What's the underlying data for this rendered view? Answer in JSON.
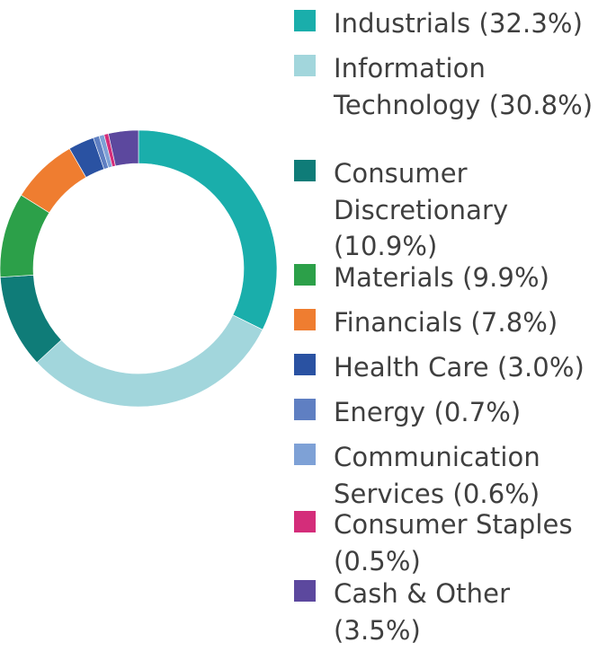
{
  "chart_data": {
    "type": "pie",
    "style": "donut",
    "legend_position": "right",
    "slices": [
      {
        "label": "Industrials (32.3%)",
        "value": 32.3,
        "color": "#1aaeab"
      },
      {
        "label": "Information Technology (30.8%)",
        "value": 30.8,
        "color": "#a2d6dc"
      },
      {
        "label": "Consumer Discretionary (10.9%)",
        "value": 10.9,
        "color": "#0f7c78"
      },
      {
        "label": "Materials (9.9%)",
        "value": 9.9,
        "color": "#2ca049"
      },
      {
        "label": "Financials (7.8%)",
        "value": 7.8,
        "color": "#ef7d30"
      },
      {
        "label": "Health Care (3.0%)",
        "value": 3.0,
        "color": "#2a52a2"
      },
      {
        "label": "Energy (0.7%)",
        "value": 0.7,
        "color": "#5f7fc2"
      },
      {
        "label": "Communication Services (0.6%)",
        "value": 0.6,
        "color": "#7ea1d6"
      },
      {
        "label": "Consumer Staples (0.5%)",
        "value": 0.5,
        "color": "#d42d7a"
      },
      {
        "label": "Cash & Other (3.5%)",
        "value": 3.5,
        "color": "#5c489e"
      }
    ]
  }
}
